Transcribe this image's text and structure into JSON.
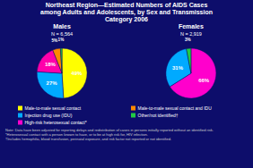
{
  "title": "Northeast Region—Estimated Numbers of AIDS Cases\namong Adults and Adolescents, by Sex and Transmission\nCategory 2006",
  "chart_data": [
    {
      "type": "pie",
      "title": "Males",
      "subtitle": "N = 6,564",
      "values": [
        49,
        27,
        18,
        5,
        1
      ],
      "value_labels": [
        "49%",
        "27%",
        "18%",
        "5%",
        "1%"
      ],
      "colors": [
        "#ffff00",
        "#00aaff",
        "#ff00aa",
        "#ff8800",
        "#22cc44"
      ],
      "data_labels": true
    },
    {
      "type": "pie",
      "title": "Females",
      "subtitle": "N = 2,919",
      "values": [
        66,
        31,
        3
      ],
      "value_labels": [
        "66%",
        "31%",
        "3%"
      ],
      "colors": [
        "#ff00cc",
        "#00aaff",
        "#22cc44"
      ],
      "data_labels": true
    }
  ],
  "legend_entries": [
    {
      "name": "Male-to-male sexual contact",
      "color": "#ffff00"
    },
    {
      "name": "Male-to-male sexual contact and IDU",
      "color": "#ff8800"
    },
    {
      "name": "Injection drug use (IDU)",
      "color": "#00aaff"
    },
    {
      "name": "Other/not identified†",
      "color": "#22cc44"
    },
    {
      "name": "High-risk heterosexual contact*",
      "color": "#ff00cc"
    }
  ],
  "annotations": [
    "Note: Data have been adjusted for reporting delays and redistribution of cases in persons initially reported without an identified risk.",
    "*Heterosexual contact with a person known to have, or to be at high risk for, HIV infection.",
    "†Includes hemophilia, blood transfusion, perinatal exposure, and risk factor not reported or not identified."
  ]
}
